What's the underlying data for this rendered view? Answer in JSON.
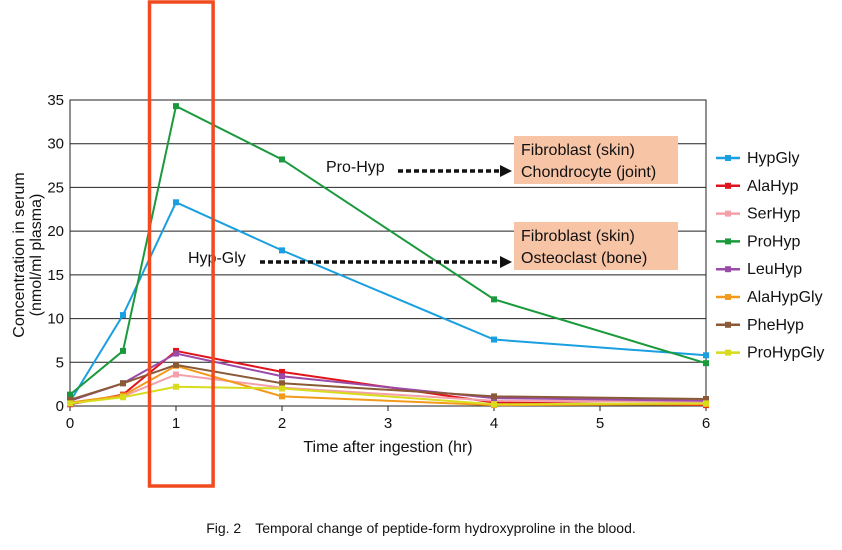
{
  "chart_data": {
    "type": "line",
    "x": [
      0,
      0.5,
      1,
      2,
      4,
      6
    ],
    "xlim": [
      0,
      6
    ],
    "ylim": [
      0,
      35
    ],
    "xticks": [
      0,
      1,
      2,
      3,
      4,
      5,
      6
    ],
    "yticks": [
      0,
      5,
      10,
      15,
      20,
      25,
      30,
      35
    ],
    "xlabel": "Time after ingestion (hr)",
    "ylabel_line1": "Concentration in serum",
    "ylabel_line2": "(nmol/ml plasma)",
    "grid": "horizontal",
    "legend_position": "right",
    "series": [
      {
        "name": "HypGly",
        "color": "#1a9fe0",
        "values": [
          0.5,
          10.4,
          23.3,
          17.8,
          7.6,
          5.8
        ]
      },
      {
        "name": "AlaHyp",
        "color": "#e0141c",
        "values": [
          0.2,
          1.3,
          6.3,
          3.9,
          0.4,
          0.1
        ]
      },
      {
        "name": "SerHyp",
        "color": "#f4a0aa",
        "values": [
          0.3,
          1.1,
          3.6,
          2.1,
          0.6,
          0.5
        ]
      },
      {
        "name": "ProHyp",
        "color": "#1a9a3c",
        "values": [
          1.3,
          6.3,
          34.3,
          28.2,
          12.2,
          4.9
        ]
      },
      {
        "name": "LeuHyp",
        "color": "#9a4aa8",
        "values": [
          0.6,
          2.6,
          6.0,
          3.4,
          0.9,
          0.6
        ]
      },
      {
        "name": "AlaHypGly",
        "color": "#f39a1c",
        "values": [
          0.4,
          1.2,
          4.6,
          1.1,
          0.1,
          0.2
        ]
      },
      {
        "name": "PheHyp",
        "color": "#8a5a36",
        "values": [
          0.7,
          2.6,
          4.7,
          2.6,
          1.1,
          0.8
        ]
      },
      {
        "name": "ProHypGly",
        "color": "#d8dc1c",
        "values": [
          0.3,
          1.0,
          2.2,
          2.0,
          0.2,
          0.3
        ]
      }
    ],
    "highlight": {
      "x_from": 0.75,
      "x_to": 1.35,
      "color": "#f04a1e"
    },
    "annotations": [
      {
        "label": "Pro-Hyp",
        "box_line1": "Fibroblast (skin)",
        "box_line2": "Chondrocyte (joint)"
      },
      {
        "label": "Hyp-Gly",
        "box_line1": "Fibroblast (skin)",
        "box_line2": "Osteoclast (bone)"
      }
    ],
    "annotation_box_color": "#f8c4a6"
  },
  "caption": "Fig. 2 Temporal change of peptide-form hydroxyproline in the blood."
}
